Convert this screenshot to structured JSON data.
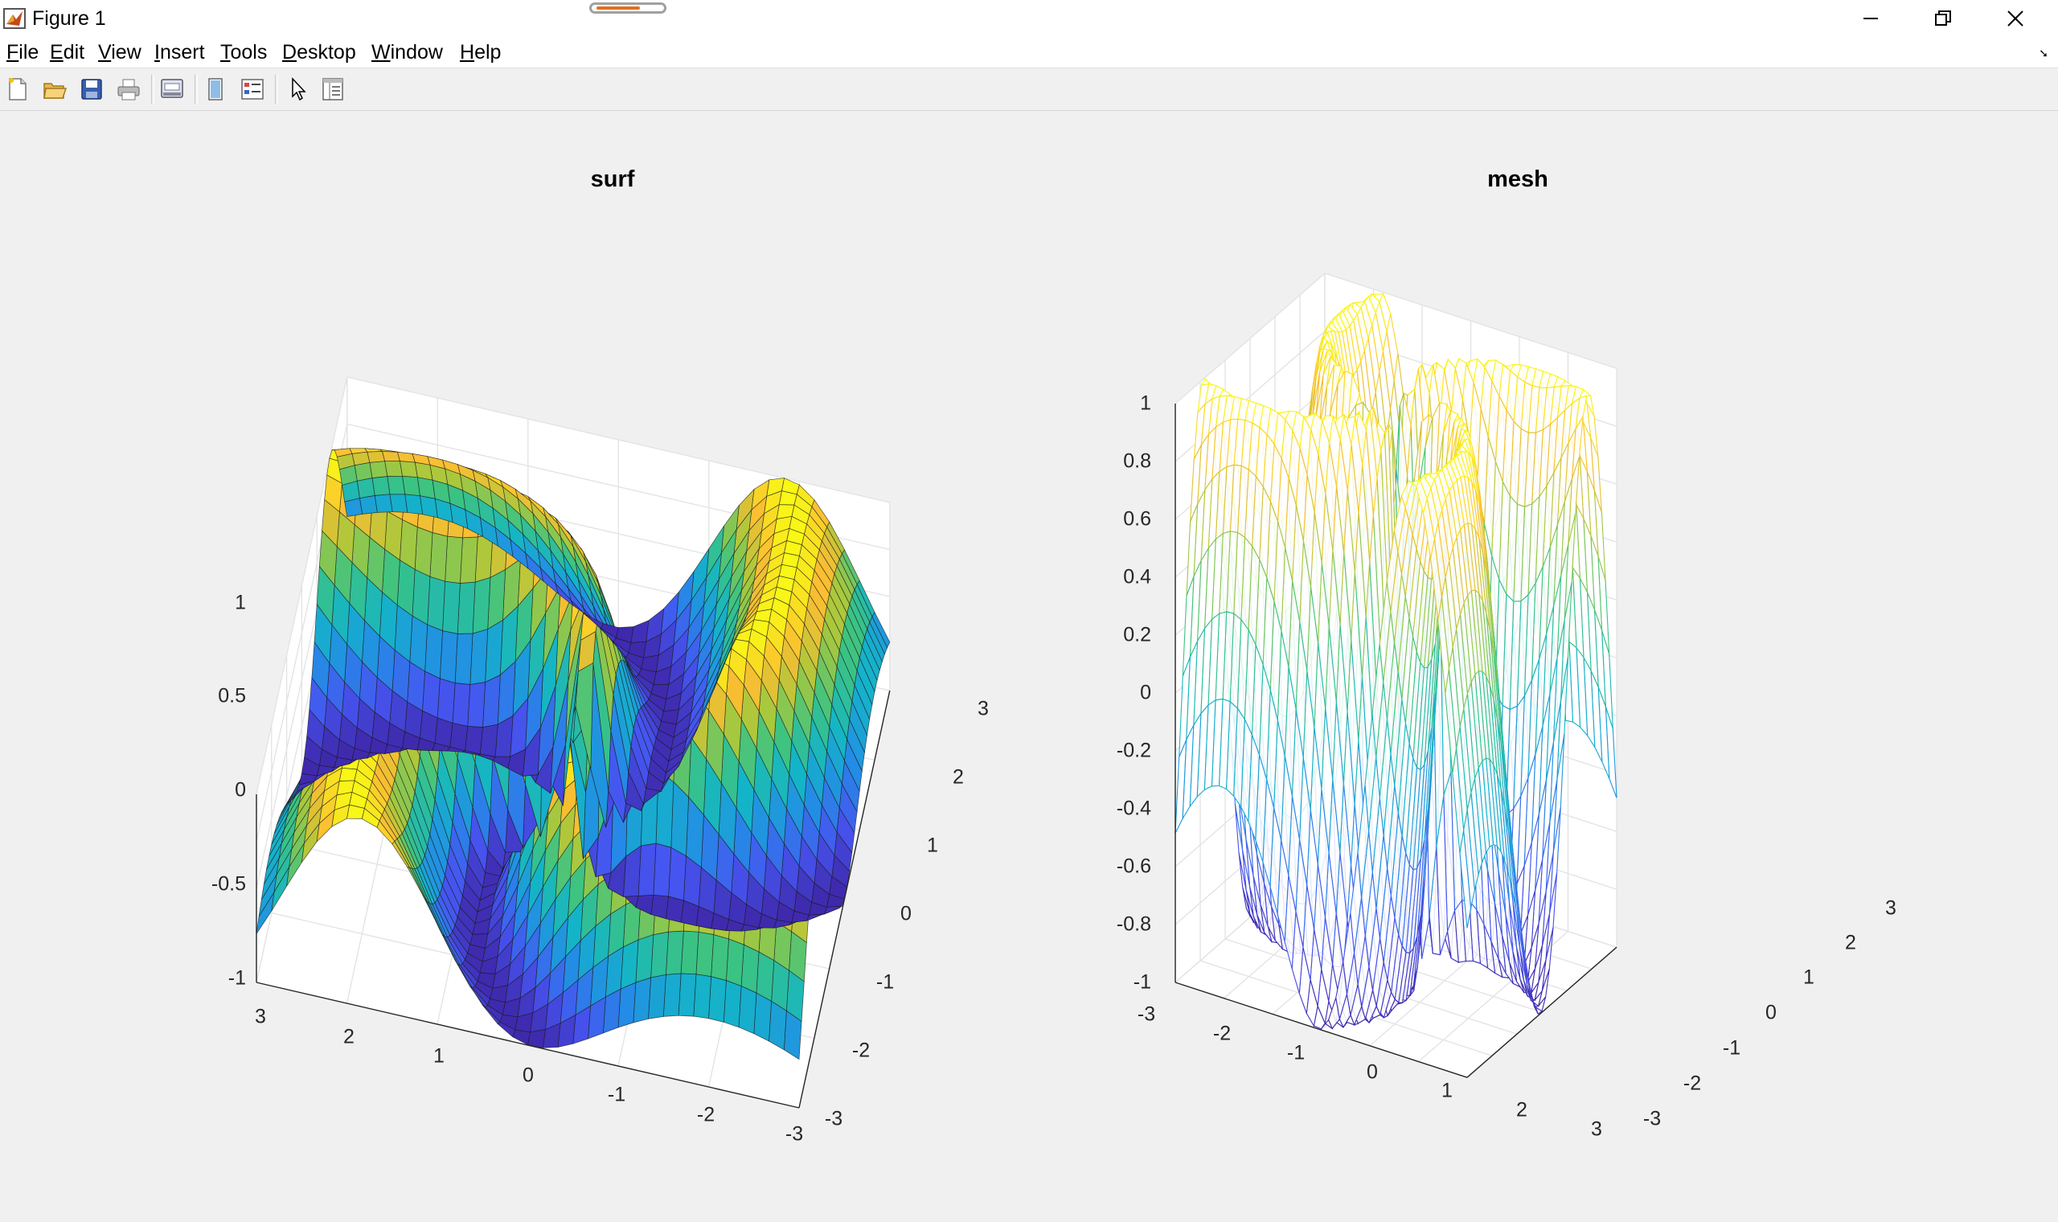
{
  "window": {
    "title": "Figure 1",
    "controls": [
      "minimize",
      "restore",
      "close"
    ]
  },
  "menu": {
    "items": [
      {
        "pre": "",
        "u": "F",
        "post": "ile"
      },
      {
        "pre": "",
        "u": "E",
        "post": "dit"
      },
      {
        "pre": "",
        "u": "V",
        "post": "iew"
      },
      {
        "pre": "",
        "u": "I",
        "post": "nsert"
      },
      {
        "pre": "",
        "u": "T",
        "post": "ools"
      },
      {
        "pre": "",
        "u": "D",
        "post": "esktop"
      },
      {
        "pre": "",
        "u": "W",
        "post": "indow"
      },
      {
        "pre": "",
        "u": "H",
        "post": "elp"
      }
    ]
  },
  "toolbar": {
    "icons": [
      "new-figure-icon",
      "open-file-icon",
      "save-icon",
      "print-icon",
      "print-preview-icon",
      "link-plot-icon",
      "insert-legend-icon",
      "edit-plot-icon",
      "property-inspector-icon"
    ]
  },
  "chart_data": [
    {
      "type": "surface",
      "title": "surf",
      "colormap": "parula",
      "edges": "black",
      "z_ticks": [
        "1",
        "0.5",
        "0",
        "-0.5",
        "-1"
      ],
      "x_ticks": [
        "3",
        "2",
        "1",
        "0",
        "-1",
        "-2",
        "-3"
      ],
      "y_ticks": [
        "3",
        "2",
        "1",
        "0",
        "-1",
        "-2",
        "-3"
      ],
      "xlim": [
        -3,
        3
      ],
      "ylim": [
        -3,
        3
      ],
      "zlim": [
        -1,
        1
      ],
      "grid": true
    },
    {
      "type": "mesh",
      "title": "mesh",
      "colormap": "parula",
      "z_ticks": [
        "1",
        "0.8",
        "0.6",
        "0.4",
        "0.2",
        "0",
        "-0.2",
        "-0.4",
        "-0.6",
        "-0.8",
        "-1"
      ],
      "x_ticks": [
        "-3",
        "-2",
        "-1",
        "0",
        "1",
        "2",
        "3"
      ],
      "y_ticks": [
        "3",
        "2",
        "1",
        "0",
        "-1",
        "-2",
        "-3"
      ],
      "xlim": [
        -3,
        3
      ],
      "ylim": [
        -3,
        3
      ],
      "zlim": [
        -1,
        1
      ],
      "grid": true
    }
  ]
}
